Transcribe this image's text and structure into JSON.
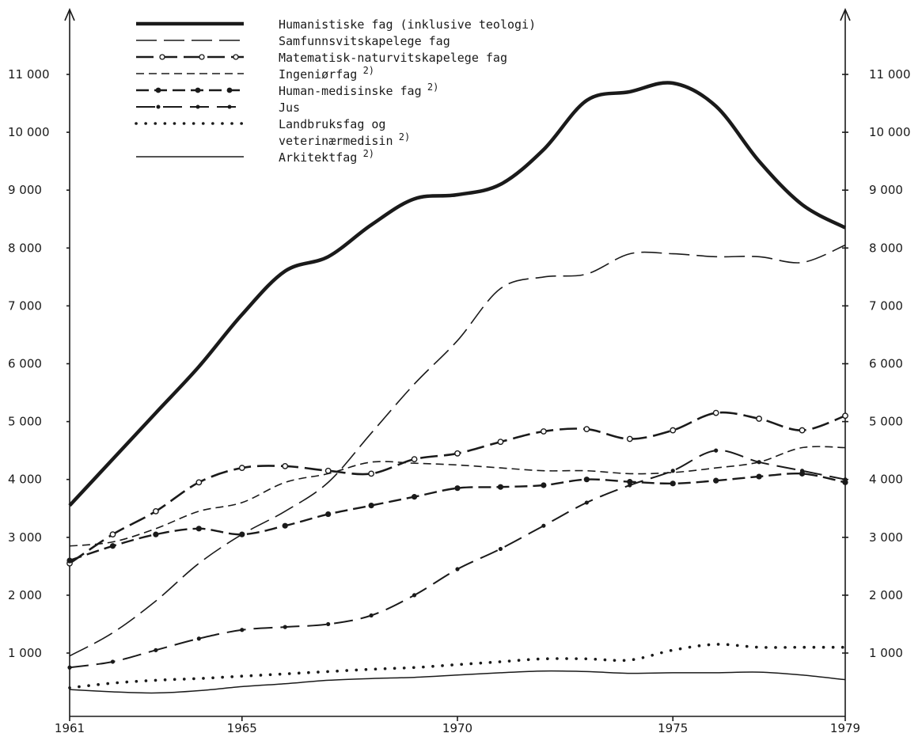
{
  "chart_data": {
    "type": "line",
    "x": [
      1961,
      1962,
      1963,
      1964,
      1965,
      1966,
      1967,
      1968,
      1969,
      1970,
      1971,
      1972,
      1973,
      1974,
      1975,
      1976,
      1977,
      1978,
      1979
    ],
    "x_ticks": [
      "1961",
      "1965",
      "1970",
      "1975",
      "1979"
    ],
    "x_tick_values": [
      1961,
      1965,
      1970,
      1975,
      1979
    ],
    "ylim": [
      0,
      11500
    ],
    "y_ticks_left": [
      "1 000",
      "2 000",
      "3 000",
      "4 000",
      "5 000",
      "6 000",
      "7 000",
      "8 000",
      "9 000",
      "10 000",
      "11 000"
    ],
    "y_ticks_right": [
      "1 000",
      "2 000",
      "3 000",
      "4 000",
      "5 000",
      "6 000",
      "7 000",
      "8 000",
      "9 000",
      "10 000",
      "11 000"
    ],
    "y_tick_values": [
      1000,
      2000,
      3000,
      4000,
      5000,
      6000,
      7000,
      8000,
      9000,
      10000,
      11000
    ],
    "grid": false,
    "legend_position": "top-left",
    "series": [
      {
        "name": "Humanistiske fag (inklusive teologi)",
        "sup": "",
        "style": "thick-solid",
        "values": [
          3550,
          4350,
          5150,
          5950,
          6850,
          7600,
          7850,
          8400,
          8850,
          8920,
          9100,
          9700,
          10550,
          10700,
          10850,
          10450,
          9500,
          8750,
          8350
        ]
      },
      {
        "name": "Samfunnsvitskapelege fag",
        "sup": "",
        "style": "long-dash",
        "values": [
          950,
          1350,
          1900,
          2550,
          3050,
          3450,
          3950,
          4800,
          5650,
          6400,
          7300,
          7500,
          7550,
          7900,
          7900,
          7850,
          7850,
          7750,
          8050
        ]
      },
      {
        "name": "Matematisk-naturvitskapelege fag",
        "sup": "",
        "style": "dash-circle",
        "values": [
          2550,
          3050,
          3450,
          3950,
          4200,
          4230,
          4150,
          4100,
          4350,
          4450,
          4650,
          4830,
          4870,
          4700,
          4850,
          5150,
          5050,
          4850,
          5100
        ]
      },
      {
        "name": "Ingeniørfag",
        "sup": "2)",
        "style": "short-dash",
        "values": [
          2850,
          2920,
          3150,
          3450,
          3600,
          3950,
          4100,
          4300,
          4280,
          4250,
          4200,
          4150,
          4150,
          4100,
          4120,
          4200,
          4300,
          4550,
          4550
        ]
      },
      {
        "name": "Human-medisinske fag",
        "sup": "2)",
        "style": "dash-dot-heavy",
        "values": [
          2600,
          2850,
          3050,
          3150,
          3050,
          3200,
          3400,
          3550,
          3700,
          3850,
          3870,
          3900,
          4000,
          3960,
          3930,
          3980,
          4050,
          4100,
          3950
        ]
      },
      {
        "name": "Jus",
        "sup": "",
        "style": "dash-dot",
        "values": [
          750,
          850,
          1050,
          1250,
          1400,
          1450,
          1500,
          1650,
          2000,
          2450,
          2800,
          3200,
          3600,
          3900,
          4150,
          4500,
          4300,
          4150,
          4000
        ]
      },
      {
        "name": "Landbruksfag og veterinærmedisin",
        "sup": "2)",
        "style": "dotted",
        "values": [
          400,
          480,
          530,
          560,
          600,
          640,
          680,
          720,
          750,
          800,
          850,
          900,
          900,
          880,
          1050,
          1150,
          1100,
          1100,
          1100
        ]
      },
      {
        "name": "Arkitektfag",
        "sup": "2)",
        "style": "thin-solid",
        "values": [
          370,
          330,
          310,
          350,
          420,
          470,
          530,
          560,
          580,
          620,
          660,
          690,
          680,
          650,
          660,
          660,
          670,
          620,
          540
        ]
      }
    ]
  }
}
